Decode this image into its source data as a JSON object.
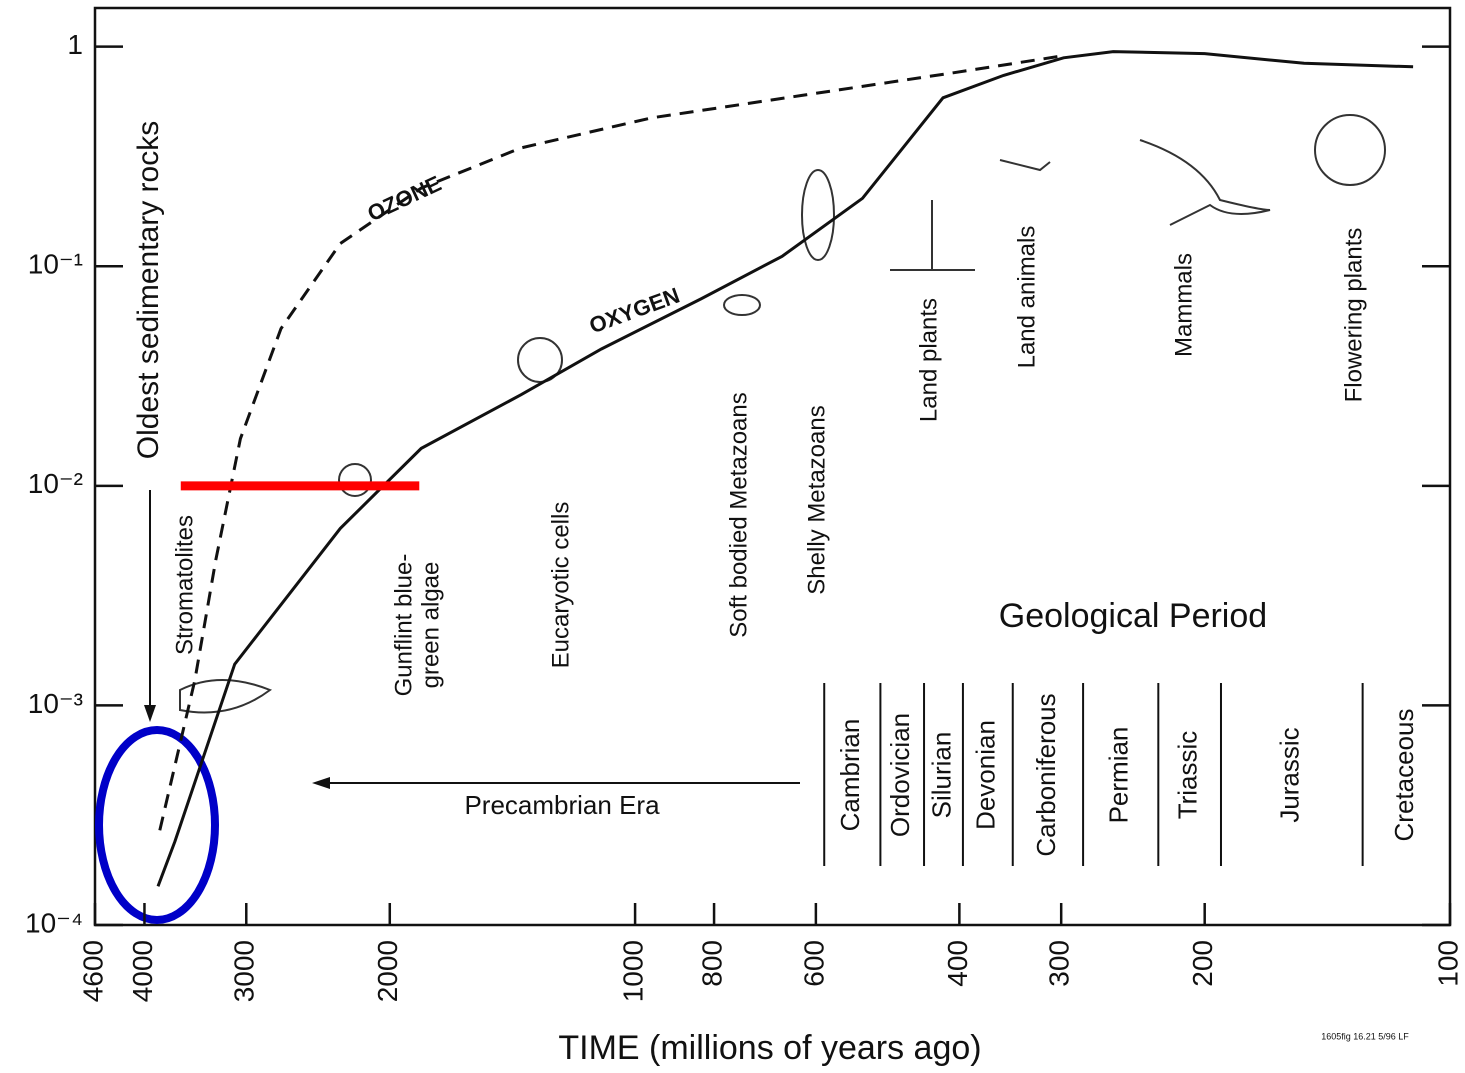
{
  "chart_data": {
    "type": "line",
    "x_label": "TIME (millions of years ago)",
    "xlim": [
      4600,
      100
    ],
    "xticks": [
      4600,
      4000,
      3000,
      2000,
      1000,
      800,
      600,
      400,
      300,
      200,
      100
    ],
    "xlog": true,
    "ylim": [
      0.0001,
      1.5
    ],
    "yticks": [
      {
        "value": 0.0001,
        "label": "10⁻⁴"
      },
      {
        "value": 0.001,
        "label": "10⁻³"
      },
      {
        "value": 0.01,
        "label": "10⁻²"
      },
      {
        "value": 0.1,
        "label": "10⁻¹"
      },
      1
    ],
    "ylog": true,
    "series": [
      {
        "name": "OZONE",
        "color": "#111111",
        "dashed": true,
        "x": [
          3830,
          3470,
          3270,
          3050,
          2720,
          2300,
          1830,
          1380,
          955,
          624,
          407,
          298
        ],
        "values": [
          0.00027,
          0.0013,
          0.0046,
          0.0164,
          0.052,
          0.127,
          0.227,
          0.346,
          0.474,
          0.6,
          0.76,
          0.91
        ]
      },
      {
        "name": "OXYGEN",
        "color": "#111111",
        "dashed": false,
        "x": [
          3850,
          3670,
          3100,
          2300,
          1830,
          1380,
          1100,
          830,
          660,
          526,
          419,
          353,
          298,
          259,
          200,
          151,
          111
        ],
        "values": [
          0.00015,
          0.00024,
          0.00154,
          0.0064,
          0.0148,
          0.026,
          0.042,
          0.071,
          0.111,
          0.204,
          0.585,
          0.74,
          0.89,
          0.95,
          0.93,
          0.84,
          0.81
        ]
      }
    ],
    "annotations": [
      "Oldest sedimentary rocks",
      "Stromatolites",
      "Gunflint blue-",
      "green algae",
      "Eucaryotic cells",
      "Soft bodied Metazoans",
      "Shelly Metazoans",
      "Land plants",
      "Land animals",
      "Mammals",
      "Flowering plants",
      "Geological Period",
      "Precambrian Era",
      "1605fig 16.21 5/96 LF"
    ],
    "periods": [
      {
        "name": "Cambrian",
        "start": 586
      },
      {
        "name": "Ordovician",
        "start": 500
      },
      {
        "name": "Silurian",
        "start": 442
      },
      {
        "name": "Devonian",
        "start": 396
      },
      {
        "name": "Carboniferous",
        "start": 344
      },
      {
        "name": "Permian",
        "start": 282
      },
      {
        "name": "Triassic",
        "start": 228
      },
      {
        "name": "Jurassic",
        "start": 191
      },
      {
        "name": "Cretaceous",
        "start": 128
      }
    ],
    "highlight": {
      "y": 0.01,
      "x": [
        3610,
        1840
      ],
      "color": "#ff0000"
    }
  }
}
